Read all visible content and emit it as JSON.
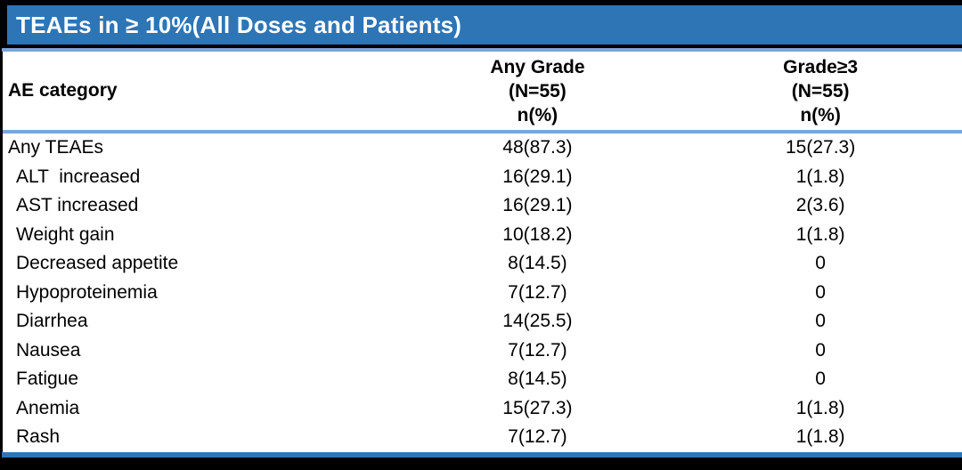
{
  "title": "TEAEs in ≥ 10%(All Doses and Patients)",
  "table": {
    "header": {
      "category": "AE category",
      "any_grade": [
        "Any Grade",
        "(N=55)",
        "n(%)"
      ],
      "grade3": [
        "Grade≥3",
        "(N=55)",
        "n(%)"
      ]
    },
    "rows": [
      {
        "category": "Any TEAEs",
        "any_grade": "48(87.3)",
        "grade3": "15(27.3)",
        "indent": false
      },
      {
        "category": "ALT  increased",
        "any_grade": "16(29.1)",
        "grade3": "1(1.8)",
        "indent": true
      },
      {
        "category": "AST increased",
        "any_grade": "16(29.1)",
        "grade3": "2(3.6)",
        "indent": true
      },
      {
        "category": "Weight gain",
        "any_grade": "10(18.2)",
        "grade3": "1(1.8)",
        "indent": true
      },
      {
        "category": "Decreased appetite",
        "any_grade": "8(14.5)",
        "grade3": "0",
        "indent": true
      },
      {
        "category": "Hypoproteinemia",
        "any_grade": "7(12.7)",
        "grade3": "0",
        "indent": true
      },
      {
        "category": "Diarrhea",
        "any_grade": "14(25.5)",
        "grade3": "0",
        "indent": true
      },
      {
        "category": "Nausea",
        "any_grade": "7(12.7)",
        "grade3": "0",
        "indent": true
      },
      {
        "category": "Fatigue",
        "any_grade": "8(14.5)",
        "grade3": "0",
        "indent": true
      },
      {
        "category": "Anemia",
        "any_grade": "15(27.3)",
        "grade3": "1(1.8)",
        "indent": true
      },
      {
        "category": "Rash",
        "any_grade": "7(12.7)",
        "grade3": "1(1.8)",
        "indent": true
      }
    ]
  },
  "chart_data": {
    "type": "table",
    "title": "TEAEs in ≥ 10%(All Doses and Patients)",
    "columns": [
      "AE category",
      "Any Grade (N=55) n(%)",
      "Grade≥3 (N=55) n(%)"
    ],
    "rows": [
      [
        "Any TEAEs",
        "48(87.3)",
        "15(27.3)"
      ],
      [
        "ALT  increased",
        "16(29.1)",
        "1(1.8)"
      ],
      [
        "AST increased",
        "16(29.1)",
        "2(3.6)"
      ],
      [
        "Weight gain",
        "10(18.2)",
        "1(1.8)"
      ],
      [
        "Decreased appetite",
        "8(14.5)",
        "0"
      ],
      [
        "Hypoproteinemia",
        "7(12.7)",
        "0"
      ],
      [
        "Diarrhea",
        "14(25.5)",
        "0"
      ],
      [
        "Nausea",
        "7(12.7)",
        "0"
      ],
      [
        "Fatigue",
        "8(14.5)",
        "0"
      ],
      [
        "Anemia",
        "15(27.3)",
        "1(1.8)"
      ],
      [
        "Rash",
        "7(12.7)",
        "1(1.8)"
      ]
    ]
  },
  "colors": {
    "accent_blue": "#2E75B6",
    "light_blue": "#7CA5D8",
    "frame_black": "#000000",
    "paper_white": "#FFFFFF",
    "text_black": "#000000",
    "title_text_white": "#FFFFFF"
  }
}
